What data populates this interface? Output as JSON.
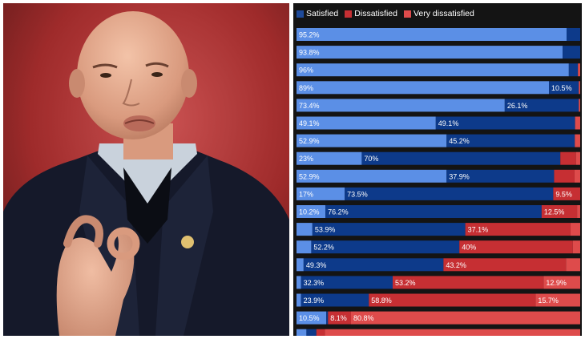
{
  "chart_data": {
    "type": "bar",
    "orientation": "horizontal",
    "stacked": true,
    "percent_stacked": true,
    "legend_position": "top-left",
    "grid": false,
    "xlim": [
      0,
      100
    ],
    "series": [
      {
        "name": "Satisfied",
        "color": "#5b8fe6"
      },
      {
        "name": "Dissatisfied",
        "color": "#c62f33"
      },
      {
        "name": "Very dissatisfied",
        "color": "#de4b4b"
      }
    ],
    "legend_colors": [
      "#1e4a9a",
      "#c62f33",
      "#de4b4b"
    ],
    "dark_segment_color": "#0d3a8a",
    "background": "#141414",
    "rows": [
      {
        "segments": [
          {
            "value": 95.2,
            "color": "#5b8fe6",
            "label": "95.2%"
          },
          {
            "value": 4.8,
            "color": "#0d3a8a",
            "label": ""
          }
        ]
      },
      {
        "segments": [
          {
            "value": 93.8,
            "color": "#5b8fe6",
            "label": "93.8%"
          },
          {
            "value": 6.2,
            "color": "#0d3a8a",
            "label": ""
          }
        ]
      },
      {
        "segments": [
          {
            "value": 96,
            "color": "#5b8fe6",
            "label": "96%"
          },
          {
            "value": 3.2,
            "color": "#0d3a8a",
            "label": ""
          },
          {
            "value": 0.8,
            "color": "#de4b4b",
            "label": ""
          }
        ]
      },
      {
        "segments": [
          {
            "value": 89,
            "color": "#5b8fe6",
            "label": "89%"
          },
          {
            "value": 10.5,
            "color": "#0d3a8a",
            "label": "10.5%"
          },
          {
            "value": 0.5,
            "color": "#de4b4b",
            "label": ""
          }
        ]
      },
      {
        "segments": [
          {
            "value": 73.4,
            "color": "#5b8fe6",
            "label": "73.4%"
          },
          {
            "value": 26.1,
            "color": "#0d3a8a",
            "label": "26.1%"
          },
          {
            "value": 0.5,
            "color": "#de4b4b",
            "label": ""
          }
        ]
      },
      {
        "segments": [
          {
            "value": 49.1,
            "color": "#5b8fe6",
            "label": "49.1%"
          },
          {
            "value": 49.1,
            "color": "#0d3a8a",
            "label": "49.1%"
          },
          {
            "value": 1.8,
            "color": "#de4b4b",
            "label": ""
          }
        ]
      },
      {
        "segments": [
          {
            "value": 52.9,
            "color": "#5b8fe6",
            "label": "52.9%"
          },
          {
            "value": 45.2,
            "color": "#0d3a8a",
            "label": "45.2%"
          },
          {
            "value": 1.9,
            "color": "#de4b4b",
            "label": ""
          }
        ]
      },
      {
        "segments": [
          {
            "value": 23,
            "color": "#5b8fe6",
            "label": "23%"
          },
          {
            "value": 70,
            "color": "#0d3a8a",
            "label": "70%"
          },
          {
            "value": 5.5,
            "color": "#c62f33",
            "label": ""
          },
          {
            "value": 1.5,
            "color": "#de4b4b",
            "label": ""
          }
        ]
      },
      {
        "segments": [
          {
            "value": 52.9,
            "color": "#5b8fe6",
            "label": "52.9%"
          },
          {
            "value": 37.9,
            "color": "#0d3a8a",
            "label": "37.9%"
          },
          {
            "value": 7.2,
            "color": "#c62f33",
            "label": ""
          },
          {
            "value": 2,
            "color": "#de4b4b",
            "label": ""
          }
        ]
      },
      {
        "segments": [
          {
            "value": 17,
            "color": "#5b8fe6",
            "label": "17%"
          },
          {
            "value": 73.5,
            "color": "#0d3a8a",
            "label": "73.5%"
          },
          {
            "value": 9.5,
            "color": "#c62f33",
            "label": "9.5%"
          }
        ]
      },
      {
        "segments": [
          {
            "value": 10.2,
            "color": "#5b8fe6",
            "label": "10.2%"
          },
          {
            "value": 76.2,
            "color": "#0d3a8a",
            "label": "76.2%"
          },
          {
            "value": 12.5,
            "color": "#c62f33",
            "label": "12.5%"
          },
          {
            "value": 1.1,
            "color": "#de4b4b",
            "label": ""
          }
        ]
      },
      {
        "segments": [
          {
            "value": 5.6,
            "color": "#5b8fe6",
            "label": ""
          },
          {
            "value": 53.9,
            "color": "#0d3a8a",
            "label": "53.9%"
          },
          {
            "value": 37.1,
            "color": "#c62f33",
            "label": "37.1%"
          },
          {
            "value": 3.4,
            "color": "#de4b4b",
            "label": ""
          }
        ]
      },
      {
        "segments": [
          {
            "value": 5.2,
            "color": "#5b8fe6",
            "label": ""
          },
          {
            "value": 52.2,
            "color": "#0d3a8a",
            "label": "52.2%"
          },
          {
            "value": 40,
            "color": "#c62f33",
            "label": "40%"
          },
          {
            "value": 2.6,
            "color": "#de4b4b",
            "label": ""
          }
        ]
      },
      {
        "segments": [
          {
            "value": 2.5,
            "color": "#5b8fe6",
            "label": ""
          },
          {
            "value": 49.3,
            "color": "#0d3a8a",
            "label": "49.3%"
          },
          {
            "value": 43.2,
            "color": "#c62f33",
            "label": "43.2%"
          },
          {
            "value": 5,
            "color": "#de4b4b",
            "label": ""
          }
        ]
      },
      {
        "segments": [
          {
            "value": 1.6,
            "color": "#5b8fe6",
            "label": ""
          },
          {
            "value": 32.3,
            "color": "#0d3a8a",
            "label": "32.3%"
          },
          {
            "value": 53.2,
            "color": "#c62f33",
            "label": "53.2%"
          },
          {
            "value": 12.9,
            "color": "#de4b4b",
            "label": "12.9%"
          }
        ]
      },
      {
        "segments": [
          {
            "value": 1.6,
            "color": "#5b8fe6",
            "label": ""
          },
          {
            "value": 23.9,
            "color": "#0d3a8a",
            "label": "23.9%"
          },
          {
            "value": 58.8,
            "color": "#c62f33",
            "label": "58.8%"
          },
          {
            "value": 15.7,
            "color": "#de4b4b",
            "label": "15.7%"
          }
        ]
      },
      {
        "segments": [
          {
            "value": 10.5,
            "color": "#5b8fe6",
            "label": "10.5%"
          },
          {
            "value": 0.6,
            "color": "#0d3a8a",
            "label": ""
          },
          {
            "value": 8.1,
            "color": "#c62f33",
            "label": "8.1%"
          },
          {
            "value": 80.8,
            "color": "#de4b4b",
            "label": "80.8%"
          }
        ]
      },
      {
        "segments": [
          {
            "value": 3.5,
            "color": "#5b8fe6",
            "label": ""
          },
          {
            "value": 3.5,
            "color": "#0d3a8a",
            "label": ""
          },
          {
            "value": 3,
            "color": "#c62f33",
            "label": ""
          },
          {
            "value": 90,
            "color": "#de4b4b",
            "label": ""
          }
        ]
      }
    ]
  }
}
